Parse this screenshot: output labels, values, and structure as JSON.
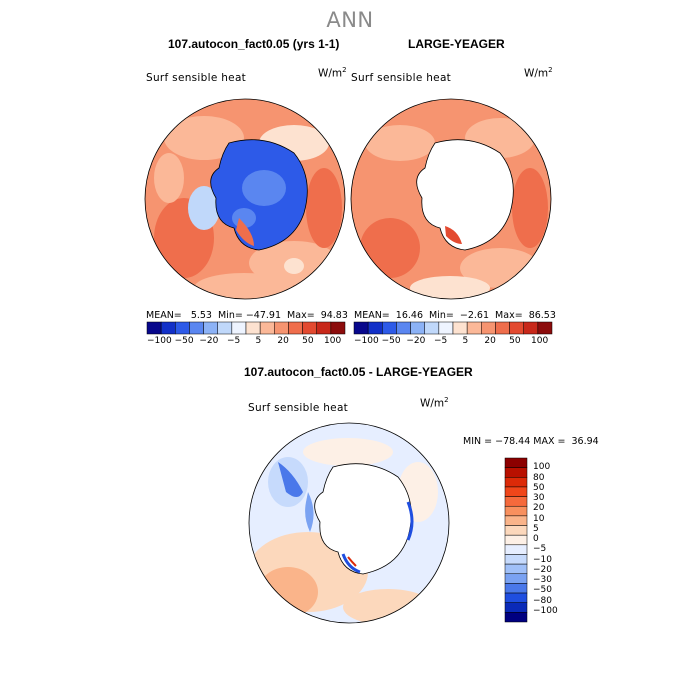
{
  "season": "ANN",
  "panels": [
    {
      "title": "107.autocon_fact0.05 (yrs 1-1)",
      "variable": "Surf sensible heat",
      "units_base": "W/m",
      "units_exp": "2",
      "stats": "MEAN=   5.53  Min= −47.91  Max=  94.83"
    },
    {
      "title": "LARGE-YEAGER",
      "variable": "Surf sensible heat",
      "units_base": "W/m",
      "units_exp": "2",
      "stats": "MEAN=  16.46  Min=  −2.61  Max=  86.53"
    },
    {
      "title": "107.autocon_fact0.05 - LARGE-YEAGER",
      "variable": "Surf sensible heat",
      "units_base": "W/m",
      "units_exp": "2",
      "stats": "MIN = −78.44 MAX =  36.94"
    }
  ],
  "top_colorbar": {
    "labels": [
      "−100",
      "−50",
      "−20",
      "−5",
      "5",
      "20",
      "50",
      "100"
    ],
    "colors": [
      "#08088c",
      "#1230c8",
      "#2d5ae8",
      "#5a86f0",
      "#8cb2f6",
      "#c0d8fa",
      "#eef4ff",
      "#fde2d0",
      "#fbb898",
      "#f69470",
      "#ef6e4c",
      "#e34a30",
      "#c8281a",
      "#8c0c0c"
    ]
  },
  "diff_colorbar": {
    "labels": [
      "100",
      "80",
      "50",
      "30",
      "20",
      "10",
      "5",
      "0",
      "−5",
      "−10",
      "−20",
      "−30",
      "−50",
      "−80",
      "−100"
    ],
    "colors": [
      "#8c0000",
      "#b81000",
      "#dc2a08",
      "#f0461a",
      "#f56a3c",
      "#f8905e",
      "#fab48a",
      "#fcd8bc",
      "#fdf0e6",
      "#e6eeff",
      "#c6dafc",
      "#a0c0f8",
      "#7aa2f2",
      "#4a78ea",
      "#1f4ee0",
      "#0a2ab8",
      "#000080"
    ]
  }
}
